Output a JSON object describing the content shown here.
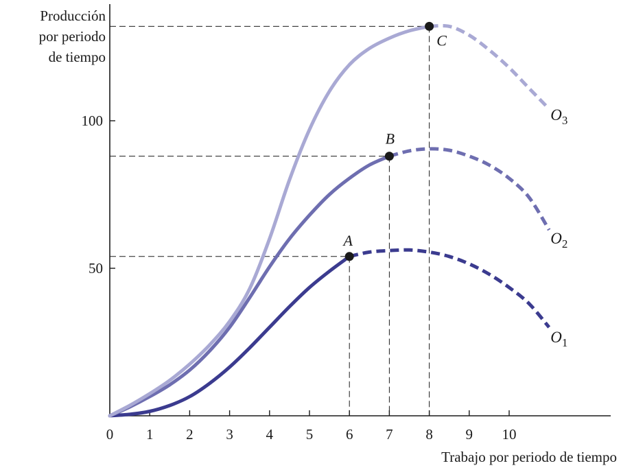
{
  "chart_data": {
    "type": "line",
    "ylabel_lines": [
      "Producción",
      "por periodo",
      "de tiempo"
    ],
    "xlabel": "Trabajo por periodo de tiempo",
    "x_ticks": [
      0,
      1,
      2,
      3,
      4,
      5,
      6,
      7,
      8,
      9,
      10
    ],
    "y_ticks": [
      50,
      100
    ],
    "xlim": [
      0,
      12.5
    ],
    "ylim": [
      0,
      132
    ],
    "grid": false,
    "colors": {
      "O1": "#3b3b8f",
      "O2": "#6e6eb0",
      "O3": "#a9a9d4",
      "axis": "#1a1a1a"
    },
    "series": [
      {
        "name": "O1",
        "label_main": "O",
        "label_sub": "1",
        "solid_points": [
          [
            0,
            0
          ],
          [
            0.5,
            0.5
          ],
          [
            1,
            1.5
          ],
          [
            1.5,
            3.5
          ],
          [
            2,
            6.5
          ],
          [
            2.5,
            11
          ],
          [
            3,
            16.5
          ],
          [
            3.5,
            23
          ],
          [
            4,
            30
          ],
          [
            4.5,
            37
          ],
          [
            5,
            43.5
          ],
          [
            5.5,
            49
          ],
          [
            6,
            54
          ]
        ],
        "dashed_points": [
          [
            6,
            54
          ],
          [
            6.5,
            55.5
          ],
          [
            7,
            56
          ],
          [
            7.5,
            56.2
          ],
          [
            8,
            55.5
          ],
          [
            8.5,
            54
          ],
          [
            9,
            51.5
          ],
          [
            9.5,
            48
          ],
          [
            10,
            43.5
          ],
          [
            10.5,
            38
          ],
          [
            11,
            30
          ]
        ],
        "marker": {
          "x": 6,
          "y": 54,
          "label": "A"
        }
      },
      {
        "name": "O2",
        "label_main": "O",
        "label_sub": "2",
        "solid_points": [
          [
            0,
            0
          ],
          [
            0.5,
            3
          ],
          [
            1,
            6.5
          ],
          [
            1.5,
            10.5
          ],
          [
            2,
            15.5
          ],
          [
            2.5,
            22
          ],
          [
            3,
            30
          ],
          [
            3.5,
            40
          ],
          [
            4,
            50.5
          ],
          [
            4.5,
            60
          ],
          [
            5,
            68
          ],
          [
            5.5,
            75
          ],
          [
            6,
            80.5
          ],
          [
            6.5,
            85
          ],
          [
            7,
            88
          ]
        ],
        "dashed_points": [
          [
            7,
            88
          ],
          [
            7.5,
            89.8
          ],
          [
            8,
            90.5
          ],
          [
            8.5,
            90
          ],
          [
            9,
            88
          ],
          [
            9.5,
            85
          ],
          [
            10,
            80.5
          ],
          [
            10.5,
            74
          ],
          [
            11,
            63
          ]
        ],
        "marker": {
          "x": 7,
          "y": 88,
          "label": "B"
        }
      },
      {
        "name": "O3",
        "label_main": "O",
        "label_sub": "3",
        "solid_points": [
          [
            0,
            0
          ],
          [
            0.5,
            3.5
          ],
          [
            1,
            7.5
          ],
          [
            1.5,
            12
          ],
          [
            2,
            17.5
          ],
          [
            2.5,
            24
          ],
          [
            3,
            32
          ],
          [
            3.5,
            43
          ],
          [
            4,
            60
          ],
          [
            4.5,
            80
          ],
          [
            5,
            97
          ],
          [
            5.5,
            110
          ],
          [
            6,
            119
          ],
          [
            6.5,
            124.5
          ],
          [
            7,
            128
          ],
          [
            7.5,
            130.5
          ],
          [
            8,
            132
          ]
        ],
        "dashed_points": [
          [
            8,
            132
          ],
          [
            8.5,
            132
          ],
          [
            9,
            129
          ],
          [
            9.5,
            124
          ],
          [
            10,
            118
          ],
          [
            10.5,
            111
          ],
          [
            11,
            104
          ]
        ],
        "marker": {
          "x": 8,
          "y": 132,
          "label": "C"
        }
      }
    ]
  }
}
